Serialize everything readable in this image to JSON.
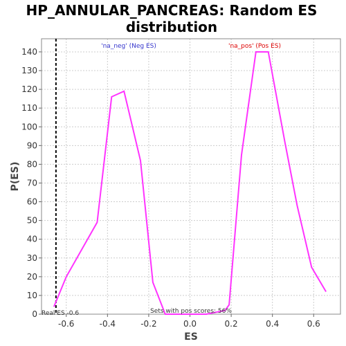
{
  "chart_data": {
    "type": "line",
    "title_lines": [
      "HP_ANNULAR_PANCREAS: Random ES",
      "distribution"
    ],
    "xlabel": "ES",
    "ylabel": "P(ES)",
    "xlim": [
      -0.72,
      0.73
    ],
    "ylim": [
      0,
      147
    ],
    "xticks": [
      -0.6,
      -0.4,
      -0.2,
      0.0,
      0.2,
      0.4,
      0.6
    ],
    "xtick_labels": [
      "-0.6",
      "-0.4",
      "-0.2",
      "0.0",
      "0.2",
      "0.4",
      "0.6"
    ],
    "yticks": [
      0,
      10,
      20,
      30,
      40,
      50,
      60,
      70,
      80,
      90,
      100,
      110,
      120,
      130,
      140
    ],
    "ytick_labels": [
      "0",
      "10",
      "20",
      "30",
      "40",
      "50",
      "60",
      "70",
      "80",
      "90",
      "100",
      "110",
      "120",
      "130",
      "140"
    ],
    "series": [
      {
        "color": "#ff33ff",
        "x": [
          -0.66,
          -0.6,
          -0.45,
          -0.38,
          -0.32,
          -0.24,
          -0.18,
          -0.12,
          -0.08,
          0.0,
          0.08,
          0.17,
          0.19,
          0.25,
          0.32,
          0.38,
          0.46,
          0.52,
          0.59,
          0.66
        ],
        "y": [
          4,
          20,
          49,
          116,
          119,
          82,
          17,
          0,
          0,
          0,
          0,
          2,
          5,
          85,
          140,
          140,
          92,
          58,
          25,
          12
        ]
      }
    ],
    "real_es": -0.65,
    "annotations": {
      "neg_label": "'na_neg' (Neg ES)",
      "pos_label": "'na_pos' (Pos ES)",
      "real_es_label": "Real ES -0.6",
      "pos_scores_label": "Sets with pos scores: 56%"
    },
    "colors": {
      "line": "#ff33ff",
      "neg_label": "#3333cc",
      "pos_label": "#dd0000",
      "real_es_line": "#000000",
      "grid": "#cccccc"
    },
    "grid": true
  }
}
